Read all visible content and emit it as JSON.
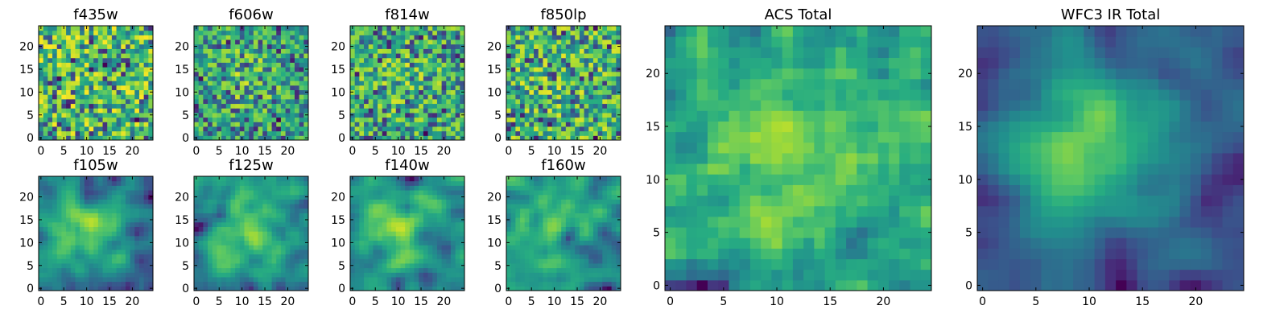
{
  "chart_data": [
    {
      "type": "heatmap",
      "id": "f435w",
      "title": "f435w",
      "grid_size": 25,
      "xlim": [
        -0.5,
        24.5
      ],
      "ylim": [
        -0.5,
        24.5
      ],
      "xticks": [
        0,
        5,
        10,
        15,
        20
      ],
      "yticks": [
        0,
        5,
        10,
        15,
        20
      ],
      "colormap": "viridis",
      "pattern": "noise",
      "seed": 11,
      "center_strength": 0.0
    },
    {
      "type": "heatmap",
      "id": "f606w",
      "title": "f606w",
      "grid_size": 25,
      "xlim": [
        -0.5,
        24.5
      ],
      "ylim": [
        -0.5,
        24.5
      ],
      "xticks": [
        0,
        5,
        10,
        15,
        20
      ],
      "yticks": [
        0,
        5,
        10,
        15,
        20
      ],
      "colormap": "viridis",
      "pattern": "noise",
      "seed": 23,
      "center_strength": 0.15
    },
    {
      "type": "heatmap",
      "id": "f814w",
      "title": "f814w",
      "grid_size": 25,
      "xlim": [
        -0.5,
        24.5
      ],
      "ylim": [
        -0.5,
        24.5
      ],
      "xticks": [
        0,
        5,
        10,
        15,
        20
      ],
      "yticks": [
        0,
        5,
        10,
        15,
        20
      ],
      "colormap": "viridis",
      "pattern": "noise",
      "seed": 37,
      "center_strength": 0.1
    },
    {
      "type": "heatmap",
      "id": "f850lp",
      "title": "f850lp",
      "grid_size": 25,
      "xlim": [
        -0.5,
        24.5
      ],
      "ylim": [
        -0.5,
        24.5
      ],
      "xticks": [
        0,
        5,
        10,
        15,
        20
      ],
      "yticks": [
        0,
        5,
        10,
        15,
        20
      ],
      "colormap": "viridis",
      "pattern": "noise",
      "seed": 41,
      "center_strength": 0.05
    },
    {
      "type": "heatmap",
      "id": "f105w",
      "title": "f105w",
      "grid_size": 25,
      "xlim": [
        -0.5,
        24.5
      ],
      "ylim": [
        -0.5,
        24.5
      ],
      "xticks": [
        0,
        5,
        10,
        15,
        20
      ],
      "yticks": [
        0,
        5,
        10,
        15,
        20
      ],
      "colormap": "viridis",
      "pattern": "smooth",
      "seed": 53,
      "center_strength": 0.35
    },
    {
      "type": "heatmap",
      "id": "f125w",
      "title": "f125w",
      "grid_size": 25,
      "xlim": [
        -0.5,
        24.5
      ],
      "ylim": [
        -0.5,
        24.5
      ],
      "xticks": [
        0,
        5,
        10,
        15,
        20
      ],
      "yticks": [
        0,
        5,
        10,
        15,
        20
      ],
      "colormap": "viridis",
      "pattern": "smooth",
      "seed": 67,
      "center_strength": 0.3
    },
    {
      "type": "heatmap",
      "id": "f140w",
      "title": "f140w",
      "grid_size": 25,
      "xlim": [
        -0.5,
        24.5
      ],
      "ylim": [
        -0.5,
        24.5
      ],
      "xticks": [
        0,
        5,
        10,
        15,
        20
      ],
      "yticks": [
        0,
        5,
        10,
        15,
        20
      ],
      "colormap": "viridis",
      "pattern": "smooth",
      "seed": 71,
      "center_strength": 0.3
    },
    {
      "type": "heatmap",
      "id": "f160w",
      "title": "f160w",
      "grid_size": 25,
      "xlim": [
        -0.5,
        24.5
      ],
      "ylim": [
        -0.5,
        24.5
      ],
      "xticks": [
        0,
        5,
        10,
        15,
        20
      ],
      "yticks": [
        0,
        5,
        10,
        15,
        20
      ],
      "colormap": "viridis",
      "pattern": "smooth",
      "seed": 83,
      "center_strength": 0.25
    },
    {
      "type": "heatmap",
      "id": "acs_total",
      "title": "ACS Total",
      "grid_size": 25,
      "xlim": [
        -0.5,
        24.5
      ],
      "ylim": [
        -0.5,
        24.5
      ],
      "xticks": [
        0,
        5,
        10,
        15,
        20
      ],
      "yticks": [
        0,
        5,
        10,
        15,
        20
      ],
      "colormap": "viridis",
      "pattern": "mixed",
      "seed": 97,
      "center_strength": 0.2
    },
    {
      "type": "heatmap",
      "id": "wfc3_ir_total",
      "title": "WFC3 IR Total",
      "grid_size": 25,
      "xlim": [
        -0.5,
        24.5
      ],
      "ylim": [
        -0.5,
        24.5
      ],
      "xticks": [
        0,
        5,
        10,
        15,
        20
      ],
      "yticks": [
        0,
        5,
        10,
        15,
        20
      ],
      "colormap": "viridis",
      "pattern": "smooth",
      "seed": 101,
      "center_strength": 0.55
    }
  ],
  "colors": {
    "background": "#ffffff",
    "axis": "#000000"
  }
}
